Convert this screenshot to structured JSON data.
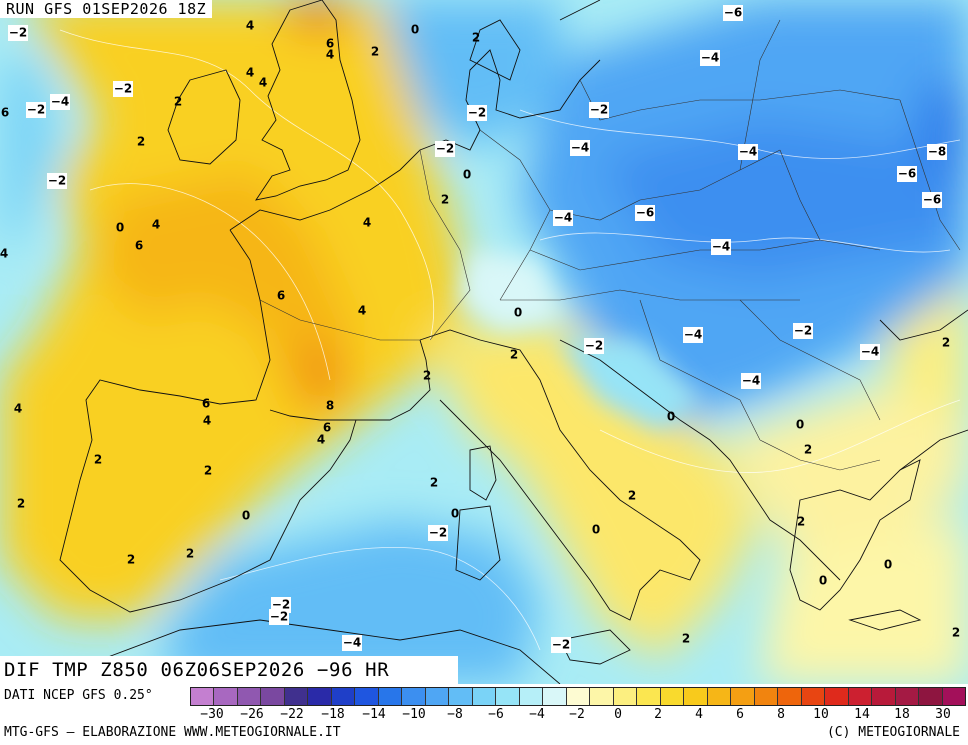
{
  "run_label": "RUN GFS 01SEP2026 18Z",
  "map_title": "DIF TMP Z850 06Z06SEP2026 −96 HR",
  "source": "DATI NCEP GFS 0.25°",
  "credits": "MTG-GFS — ELABORAZIONE WWW.METEOGIORNALE.IT",
  "copyright": "(C) METEOGIORNALE",
  "legend": {
    "colors": [
      "#c47fd0",
      "#a868c0",
      "#9058b0",
      "#7a48a0",
      "#40308e",
      "#2a2aa8",
      "#1f3fc8",
      "#1f56e0",
      "#2876ea",
      "#3c8ff0",
      "#4fa6f4",
      "#62bdf6",
      "#7ad3f7",
      "#96e4f7",
      "#b6eff8",
      "#d9f7f8",
      "#fdfbd2",
      "#fdf6a8",
      "#fcef80",
      "#fbe650",
      "#f9da2d",
      "#f8ca1c",
      "#f6b617",
      "#f49f13",
      "#f1840f",
      "#ee650c",
      "#e84512",
      "#df2a1c",
      "#cc2030",
      "#b81a3a",
      "#a41a44",
      "#8e1540",
      "#a3105a"
    ],
    "ticks": [
      "−30",
      "−26",
      "−22",
      "−18",
      "−14",
      "−10",
      "−8",
      "−6",
      "−4",
      "−2",
      "0",
      "2",
      "4",
      "6",
      "8",
      "10",
      "14",
      "18",
      "22",
      "30"
    ]
  },
  "map_labels": [
    {
      "text": "−2",
      "neg": true
    },
    {
      "text": "4",
      "neg": false
    },
    {
      "text": "6",
      "neg": false
    },
    {
      "text": "4",
      "neg": false
    },
    {
      "text": "2",
      "neg": false
    },
    {
      "text": "0",
      "neg": false
    },
    {
      "text": "2",
      "neg": false
    },
    {
      "text": "−6",
      "neg": true
    },
    {
      "text": "4",
      "neg": false
    },
    {
      "text": "4",
      "neg": false
    },
    {
      "text": "−2",
      "neg": true
    },
    {
      "text": "−4",
      "neg": true
    },
    {
      "text": "−2",
      "neg": true
    },
    {
      "text": "2",
      "neg": false
    },
    {
      "text": "6",
      "neg": false
    },
    {
      "text": "−4",
      "neg": true
    },
    {
      "text": "−2",
      "neg": true
    },
    {
      "text": "−2",
      "neg": true
    },
    {
      "text": "2",
      "neg": false
    },
    {
      "text": "−4",
      "neg": true
    },
    {
      "text": "−4",
      "neg": true
    },
    {
      "text": "−2",
      "neg": true
    },
    {
      "text": "−8",
      "neg": true
    },
    {
      "text": "−2",
      "neg": true
    },
    {
      "text": "0",
      "neg": false
    },
    {
      "text": "−6",
      "neg": true
    },
    {
      "text": "2",
      "neg": false
    },
    {
      "text": "−6",
      "neg": true
    },
    {
      "text": "−4",
      "neg": true
    },
    {
      "text": "−6",
      "neg": true
    },
    {
      "text": "4",
      "neg": false
    },
    {
      "text": "0",
      "neg": false
    },
    {
      "text": "4",
      "neg": false
    },
    {
      "text": "6",
      "neg": false
    },
    {
      "text": "4",
      "neg": false
    },
    {
      "text": "−4",
      "neg": true
    },
    {
      "text": "6",
      "neg": false
    },
    {
      "text": "4",
      "neg": false
    },
    {
      "text": "0",
      "neg": false
    },
    {
      "text": "−4",
      "neg": true
    },
    {
      "text": "−2",
      "neg": true
    },
    {
      "text": "2",
      "neg": false
    },
    {
      "text": "−2",
      "neg": true
    },
    {
      "text": "−4",
      "neg": true
    },
    {
      "text": "2",
      "neg": false
    },
    {
      "text": "2",
      "neg": false
    },
    {
      "text": "−4",
      "neg": true
    },
    {
      "text": "4",
      "neg": false
    },
    {
      "text": "6",
      "neg": false
    },
    {
      "text": "8",
      "neg": false
    },
    {
      "text": "4",
      "neg": false
    },
    {
      "text": "6",
      "neg": false
    },
    {
      "text": "4",
      "neg": false
    },
    {
      "text": "0",
      "neg": false
    },
    {
      "text": "0",
      "neg": false
    },
    {
      "text": "2",
      "neg": false
    },
    {
      "text": "2",
      "neg": false
    },
    {
      "text": "2",
      "neg": false
    },
    {
      "text": "2",
      "neg": false
    },
    {
      "text": "2",
      "neg": false
    },
    {
      "text": "0",
      "neg": false
    },
    {
      "text": "−2",
      "neg": true
    },
    {
      "text": "2",
      "neg": false
    },
    {
      "text": "2",
      "neg": false
    },
    {
      "text": "0",
      "neg": false
    },
    {
      "text": "2",
      "neg": false
    },
    {
      "text": "0",
      "neg": false
    },
    {
      "text": "−2",
      "neg": true
    },
    {
      "text": "−2",
      "neg": true
    },
    {
      "text": "0",
      "neg": false
    },
    {
      "text": "0",
      "neg": false
    },
    {
      "text": "2",
      "neg": false
    },
    {
      "text": "−4",
      "neg": true
    },
    {
      "text": "−2",
      "neg": true
    },
    {
      "text": "2",
      "neg": false
    },
    {
      "text": "2",
      "neg": false
    }
  ]
}
